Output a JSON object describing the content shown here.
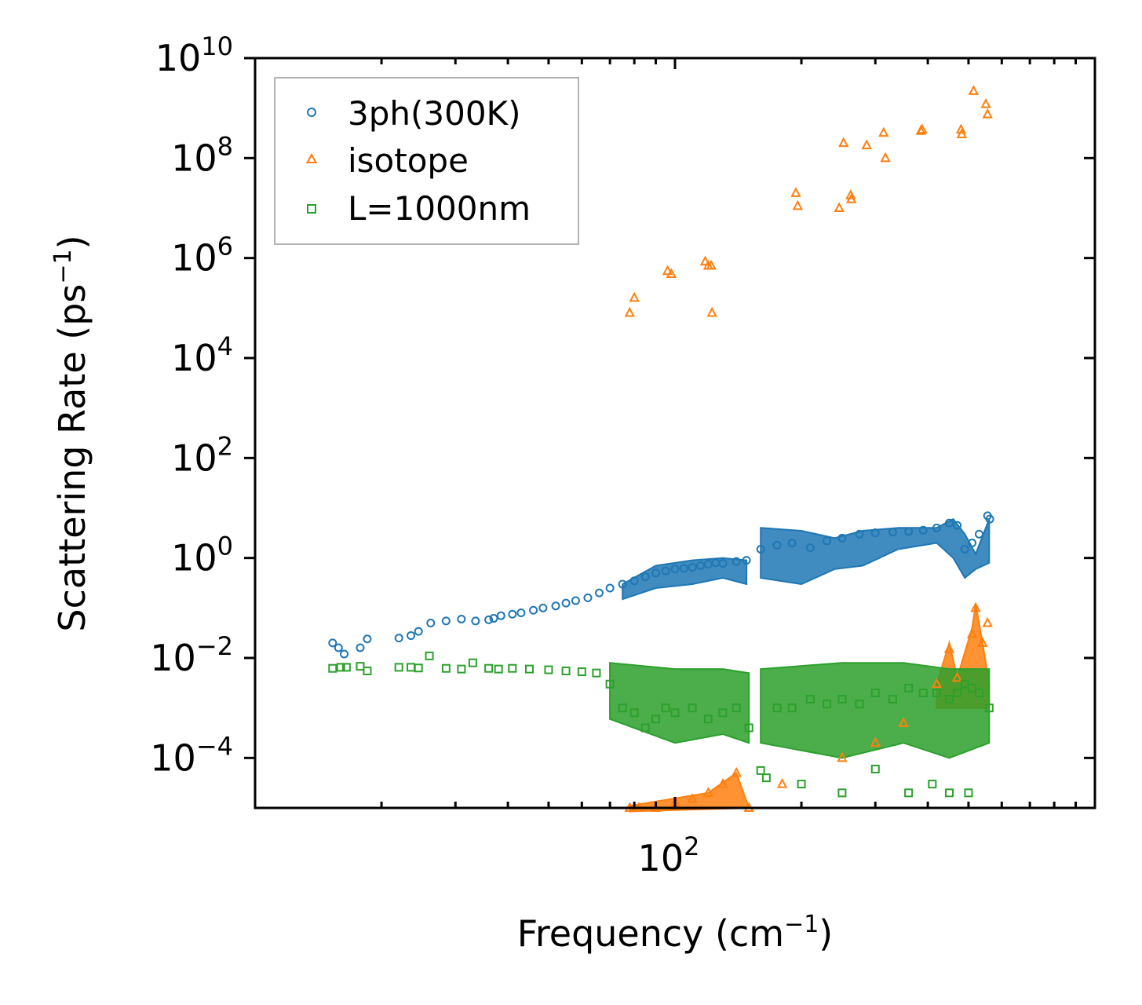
{
  "chart_data": {
    "type": "scatter",
    "xscale": "log",
    "yscale": "log",
    "xlim": [
      10,
      1000
    ],
    "ylim": [
      1e-05,
      10000000000.0
    ],
    "xlabel": "Frequency (cm⁻¹)",
    "xlabel_base": "Frequency (cm",
    "xlabel_exp": "−1",
    "xlabel_close": ")",
    "ylabel_base": "Scattering Rate (ps",
    "ylabel_exp": "−1",
    "ylabel_close": ")",
    "x_ticks": [
      {
        "value": 100,
        "base": "10",
        "exp": "2"
      }
    ],
    "y_ticks": [
      {
        "value": 10000000000.0,
        "base": "10",
        "exp": "10"
      },
      {
        "value": 100000000.0,
        "base": "10",
        "exp": "8"
      },
      {
        "value": 1000000.0,
        "base": "10",
        "exp": "6"
      },
      {
        "value": 10000.0,
        "base": "10",
        "exp": "4"
      },
      {
        "value": 100.0,
        "base": "10",
        "exp": "2"
      },
      {
        "value": 1,
        "base": "10",
        "exp": "0"
      },
      {
        "value": 0.01,
        "base": "10",
        "exp": "−2"
      },
      {
        "value": 0.0001,
        "base": "10",
        "exp": "−4"
      }
    ],
    "legend_position": "top-left",
    "series": [
      {
        "name": "3ph(300K)",
        "marker": "circle",
        "color": "#1f77b4",
        "points": [
          [
            15.3,
            0.02
          ],
          [
            15.8,
            0.016
          ],
          [
            16.3,
            0.012
          ],
          [
            17.8,
            0.016
          ],
          [
            18.5,
            0.024
          ],
          [
            22,
            0.025
          ],
          [
            23.5,
            0.028
          ],
          [
            24.5,
            0.034
          ],
          [
            26.2,
            0.05
          ],
          [
            28.5,
            0.055
          ],
          [
            31,
            0.06
          ],
          [
            33.5,
            0.055
          ],
          [
            36,
            0.058
          ],
          [
            37,
            0.062
          ],
          [
            38.5,
            0.07
          ],
          [
            41,
            0.075
          ],
          [
            43,
            0.08
          ],
          [
            46,
            0.09
          ],
          [
            48.5,
            0.1
          ],
          [
            52,
            0.11
          ],
          [
            55,
            0.125
          ],
          [
            58,
            0.14
          ],
          [
            62,
            0.16
          ],
          [
            66,
            0.2
          ],
          [
            70,
            0.25
          ],
          [
            75,
            0.3
          ],
          [
            80,
            0.35
          ],
          [
            85,
            0.42
          ],
          [
            90,
            0.5
          ],
          [
            95,
            0.55
          ],
          [
            100,
            0.6
          ],
          [
            105,
            0.62
          ],
          [
            110,
            0.65
          ],
          [
            115,
            0.7
          ],
          [
            120,
            0.75
          ],
          [
            125,
            0.8
          ],
          [
            130,
            0.78
          ],
          [
            140,
            0.85
          ],
          [
            148,
            0.9
          ],
          [
            160,
            1.5
          ],
          [
            175,
            1.8
          ],
          [
            190,
            2.0
          ],
          [
            210,
            1.6
          ],
          [
            230,
            2.2
          ],
          [
            250,
            2.5
          ],
          [
            275,
            3.0
          ],
          [
            300,
            3.2
          ],
          [
            330,
            3.3
          ],
          [
            360,
            3.4
          ],
          [
            390,
            3.6
          ],
          [
            420,
            4.0
          ],
          [
            450,
            5.0
          ],
          [
            470,
            4.5
          ],
          [
            490,
            1.5
          ],
          [
            510,
            2.0
          ],
          [
            530,
            3.0
          ],
          [
            555,
            7.0
          ],
          [
            562,
            6.0
          ]
        ]
      },
      {
        "name": "isotope",
        "marker": "triangle",
        "color": "#ff7f0e",
        "points": [
          [
            78,
            80000.0
          ],
          [
            80,
            160000.0
          ],
          [
            96,
            550000.0
          ],
          [
            98,
            480000.0
          ],
          [
            118,
            850000.0
          ],
          [
            120,
            700000.0
          ],
          [
            122,
            700000.0
          ],
          [
            122.5,
            80000.0
          ],
          [
            194,
            20000000.0
          ],
          [
            196,
            11000000.0
          ],
          [
            246,
            10000000.0
          ],
          [
            252,
            200000000.0
          ],
          [
            262,
            18000000.0
          ],
          [
            263,
            15000000.0
          ],
          [
            286,
            180000000.0
          ],
          [
            314,
            320000000.0
          ],
          [
            317,
            100000000.0
          ],
          [
            385,
            350000000.0
          ],
          [
            388,
            370000000.0
          ],
          [
            480,
            370000000.0
          ],
          [
            482,
            300000000.0
          ],
          [
            514,
            2200000000.0
          ],
          [
            550,
            1200000000.0
          ],
          [
            555,
            750000000.0
          ],
          [
            78,
            1e-05
          ],
          [
            82,
            1e-05
          ],
          [
            90,
            1e-05
          ],
          [
            100,
            1.3e-05
          ],
          [
            110,
            1.5e-05
          ],
          [
            120,
            2e-05
          ],
          [
            130,
            3e-05
          ],
          [
            140,
            5e-05
          ],
          [
            150,
            1e-05
          ],
          [
            180,
            3e-05
          ],
          [
            250,
            0.0001
          ],
          [
            300,
            0.0002
          ],
          [
            350,
            0.0005
          ],
          [
            420,
            0.003
          ],
          [
            450,
            0.015
          ],
          [
            470,
            0.004
          ],
          [
            510,
            0.03
          ],
          [
            520,
            0.1
          ],
          [
            540,
            0.02
          ],
          [
            555,
            0.05
          ]
        ]
      },
      {
        "name": "L=1000nm",
        "marker": "square",
        "color": "#2ca02c",
        "points": [
          [
            15.3,
            0.0062
          ],
          [
            16,
            0.0065
          ],
          [
            16.5,
            0.0065
          ],
          [
            17.8,
            0.0068
          ],
          [
            18.5,
            0.0055
          ],
          [
            22,
            0.0065
          ],
          [
            23.5,
            0.0065
          ],
          [
            24.5,
            0.0063
          ],
          [
            26,
            0.011
          ],
          [
            28.5,
            0.0062
          ],
          [
            31,
            0.006
          ],
          [
            33,
            0.008
          ],
          [
            36,
            0.0062
          ],
          [
            38,
            0.006
          ],
          [
            41,
            0.0062
          ],
          [
            45,
            0.006
          ],
          [
            50,
            0.0058
          ],
          [
            55,
            0.0055
          ],
          [
            60,
            0.0053
          ],
          [
            65,
            0.005
          ],
          [
            70,
            0.003
          ],
          [
            75,
            0.001
          ],
          [
            80,
            0.0008
          ],
          [
            85,
            0.0004
          ],
          [
            90,
            0.0006
          ],
          [
            95,
            0.001
          ],
          [
            100,
            0.0008
          ],
          [
            110,
            0.001
          ],
          [
            120,
            0.0006
          ],
          [
            130,
            0.0008
          ],
          [
            140,
            0.001
          ],
          [
            150,
            0.0004
          ],
          [
            160,
            5.6e-05
          ],
          [
            175,
            0.001
          ],
          [
            190,
            0.001
          ],
          [
            210,
            0.0015
          ],
          [
            230,
            0.0012
          ],
          [
            250,
            0.0015
          ],
          [
            275,
            0.0012
          ],
          [
            300,
            0.002
          ],
          [
            330,
            0.0015
          ],
          [
            360,
            0.0025
          ],
          [
            390,
            0.002
          ],
          [
            420,
            0.002
          ],
          [
            450,
            0.0015
          ],
          [
            470,
            0.002
          ],
          [
            490,
            0.003
          ],
          [
            510,
            0.0025
          ],
          [
            530,
            0.002
          ],
          [
            560,
            0.001
          ],
          [
            165,
            4e-05
          ],
          [
            200,
            3e-05
          ],
          [
            250,
            2e-05
          ],
          [
            300,
            6e-05
          ],
          [
            360,
            2e-05
          ],
          [
            410,
            3e-05
          ],
          [
            450,
            2e-05
          ],
          [
            500,
            2e-05
          ]
        ]
      }
    ],
    "dense_bands": [
      {
        "series": "3ph(300K)",
        "color": "#1f77b4",
        "band": [
          [
            75,
            0.3
          ],
          [
            90,
            0.7
          ],
          [
            110,
            0.9
          ],
          [
            130,
            1.0
          ],
          [
            148,
            0.9
          ],
          [
            148,
            0.3
          ],
          [
            130,
            0.4
          ],
          [
            110,
            0.3
          ],
          [
            90,
            0.25
          ],
          [
            75,
            0.15
          ]
        ]
      },
      {
        "series": "3ph(300K)",
        "color": "#1f77b4",
        "band": [
          [
            160,
            4.0
          ],
          [
            200,
            3.5
          ],
          [
            240,
            2.5
          ],
          [
            280,
            3.5
          ],
          [
            340,
            4.0
          ],
          [
            420,
            4.0
          ],
          [
            460,
            6.0
          ],
          [
            490,
            3.0
          ],
          [
            520,
            1.2
          ],
          [
            560,
            6.0
          ],
          [
            560,
            0.8
          ],
          [
            520,
            0.6
          ],
          [
            490,
            0.4
          ],
          [
            460,
            1.0
          ],
          [
            420,
            2.0
          ],
          [
            340,
            1.5
          ],
          [
            280,
            0.7
          ],
          [
            240,
            0.6
          ],
          [
            200,
            0.3
          ],
          [
            160,
            0.4
          ]
        ]
      },
      {
        "series": "isotope",
        "color": "#ff7f0e",
        "band": [
          [
            78,
            1.1e-05
          ],
          [
            120,
            2e-05
          ],
          [
            140,
            5e-05
          ],
          [
            150,
            1e-05
          ],
          [
            78,
            8.5e-06
          ]
        ]
      },
      {
        "series": "isotope",
        "color": "#ff7f0e",
        "band": [
          [
            420,
            0.003
          ],
          [
            450,
            0.02
          ],
          [
            470,
            0.004
          ],
          [
            510,
            0.04
          ],
          [
            520,
            0.12
          ],
          [
            540,
            0.02
          ],
          [
            560,
            0.003
          ],
          [
            560,
            0.001
          ],
          [
            420,
            0.001
          ]
        ]
      },
      {
        "series": "L=1000nm",
        "color": "#2ca02c",
        "band": [
          [
            70,
            0.008
          ],
          [
            100,
            0.006
          ],
          [
            130,
            0.006
          ],
          [
            150,
            0.005
          ],
          [
            150,
            0.0002
          ],
          [
            130,
            0.0003
          ],
          [
            100,
            0.0002
          ],
          [
            70,
            0.0006
          ]
        ]
      },
      {
        "series": "L=1000nm",
        "color": "#2ca02c",
        "band": [
          [
            160,
            0.006
          ],
          [
            250,
            0.008
          ],
          [
            350,
            0.008
          ],
          [
            450,
            0.006
          ],
          [
            560,
            0.006
          ],
          [
            560,
            0.0002
          ],
          [
            450,
            0.0001
          ],
          [
            350,
            0.0002
          ],
          [
            250,
            0.0001
          ],
          [
            160,
            0.0002
          ]
        ]
      }
    ]
  }
}
